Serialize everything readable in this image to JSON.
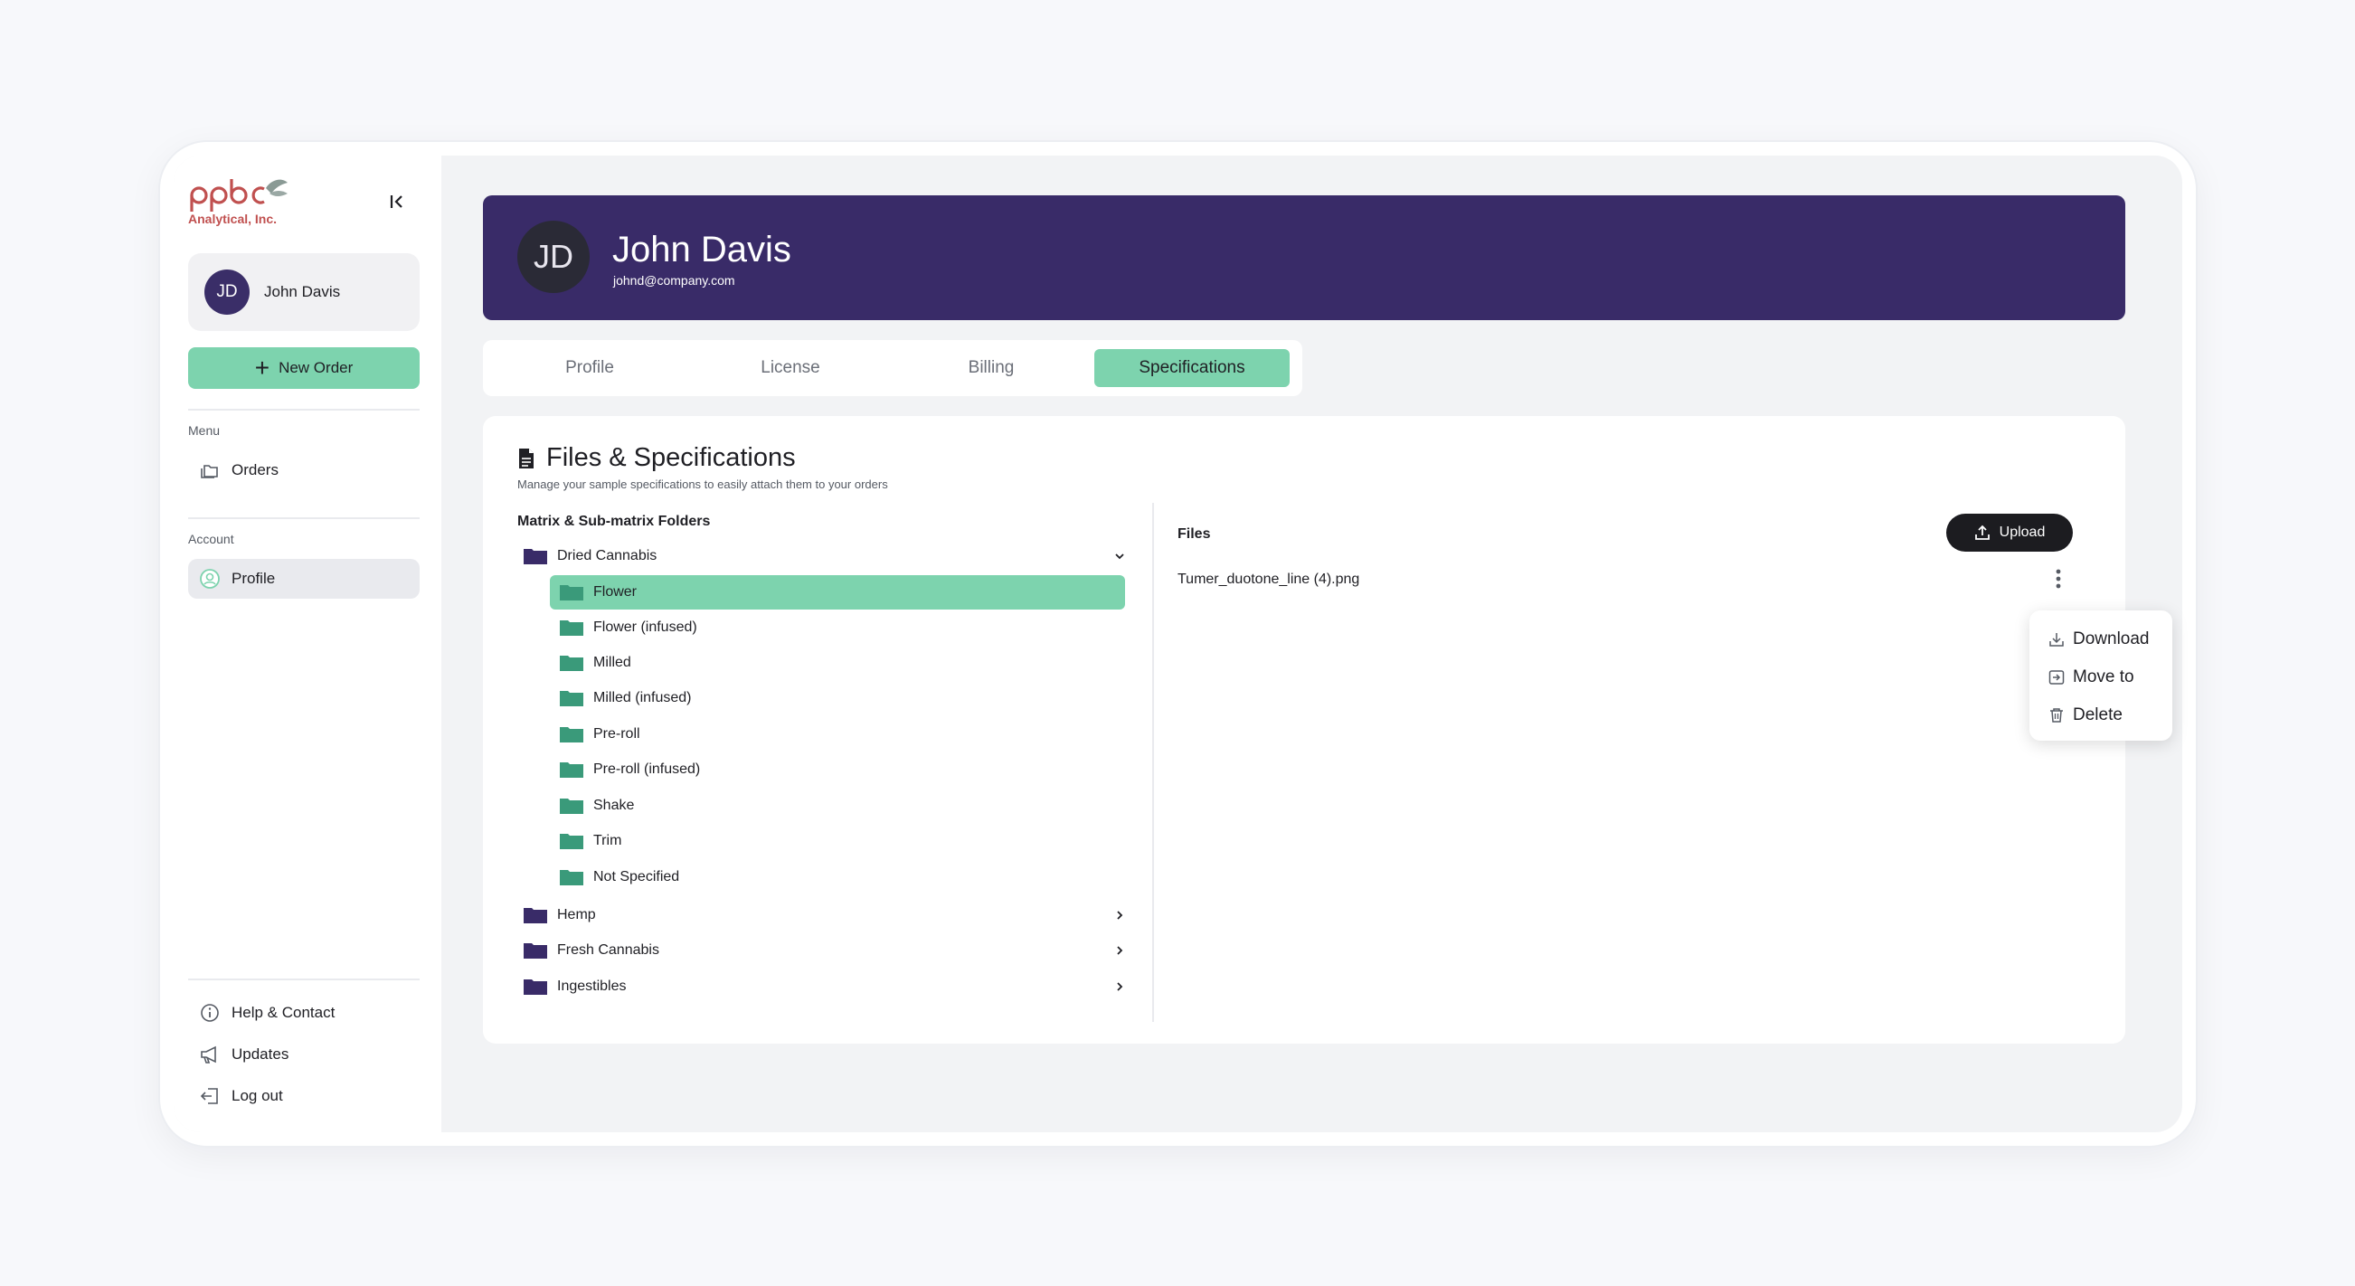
{
  "brand": {
    "logo_text": "Analytical, Inc.",
    "accent": "#7dd3ae",
    "banner_color": "#392b68"
  },
  "sidebar": {
    "user": {
      "initials": "JD",
      "name": "John Davis"
    },
    "new_order_label": "New Order",
    "menu_label": "Menu",
    "menu_items": [
      {
        "label": "Orders",
        "icon": "folders-icon"
      }
    ],
    "account_label": "Account",
    "account_items": [
      {
        "label": "Profile",
        "icon": "user-circle-icon",
        "active": true
      }
    ],
    "footer_items": [
      {
        "label": "Help & Contact",
        "icon": "info-icon"
      },
      {
        "label": "Updates",
        "icon": "megaphone-icon"
      },
      {
        "label": "Log out",
        "icon": "logout-icon"
      }
    ]
  },
  "profile": {
    "initials": "JD",
    "name": "John Davis",
    "email": "johnd@company.com"
  },
  "tabs": [
    {
      "label": "Profile",
      "active": false
    },
    {
      "label": "License",
      "active": false
    },
    {
      "label": "Billing",
      "active": false
    },
    {
      "label": "Specifications",
      "active": true
    }
  ],
  "specs": {
    "title": "Files & Specifications",
    "subtitle": "Manage your sample specifications to easily attach them to your orders",
    "folders_label": "Matrix & Sub-matrix Folders",
    "folders": [
      {
        "label": "Dried Cannabis",
        "expanded": true,
        "children": [
          "Flower",
          "Flower (infused)",
          "Milled",
          "Milled (infused)",
          "Pre-roll",
          "Pre-roll (infused)",
          "Shake",
          "Trim",
          "Not Specified"
        ],
        "selected_child": "Flower"
      },
      {
        "label": "Hemp",
        "expanded": false
      },
      {
        "label": "Fresh Cannabis",
        "expanded": false
      },
      {
        "label": "Ingestibles",
        "expanded": false
      }
    ],
    "files_label": "Files",
    "upload_label": "Upload",
    "files": [
      {
        "name": "Tumer_duotone_line (4).png"
      }
    ]
  },
  "context_menu": {
    "items": [
      {
        "label": "Download",
        "icon": "download-icon"
      },
      {
        "label": "Move to",
        "icon": "move-to-icon"
      },
      {
        "label": "Delete",
        "icon": "trash-icon"
      }
    ]
  }
}
